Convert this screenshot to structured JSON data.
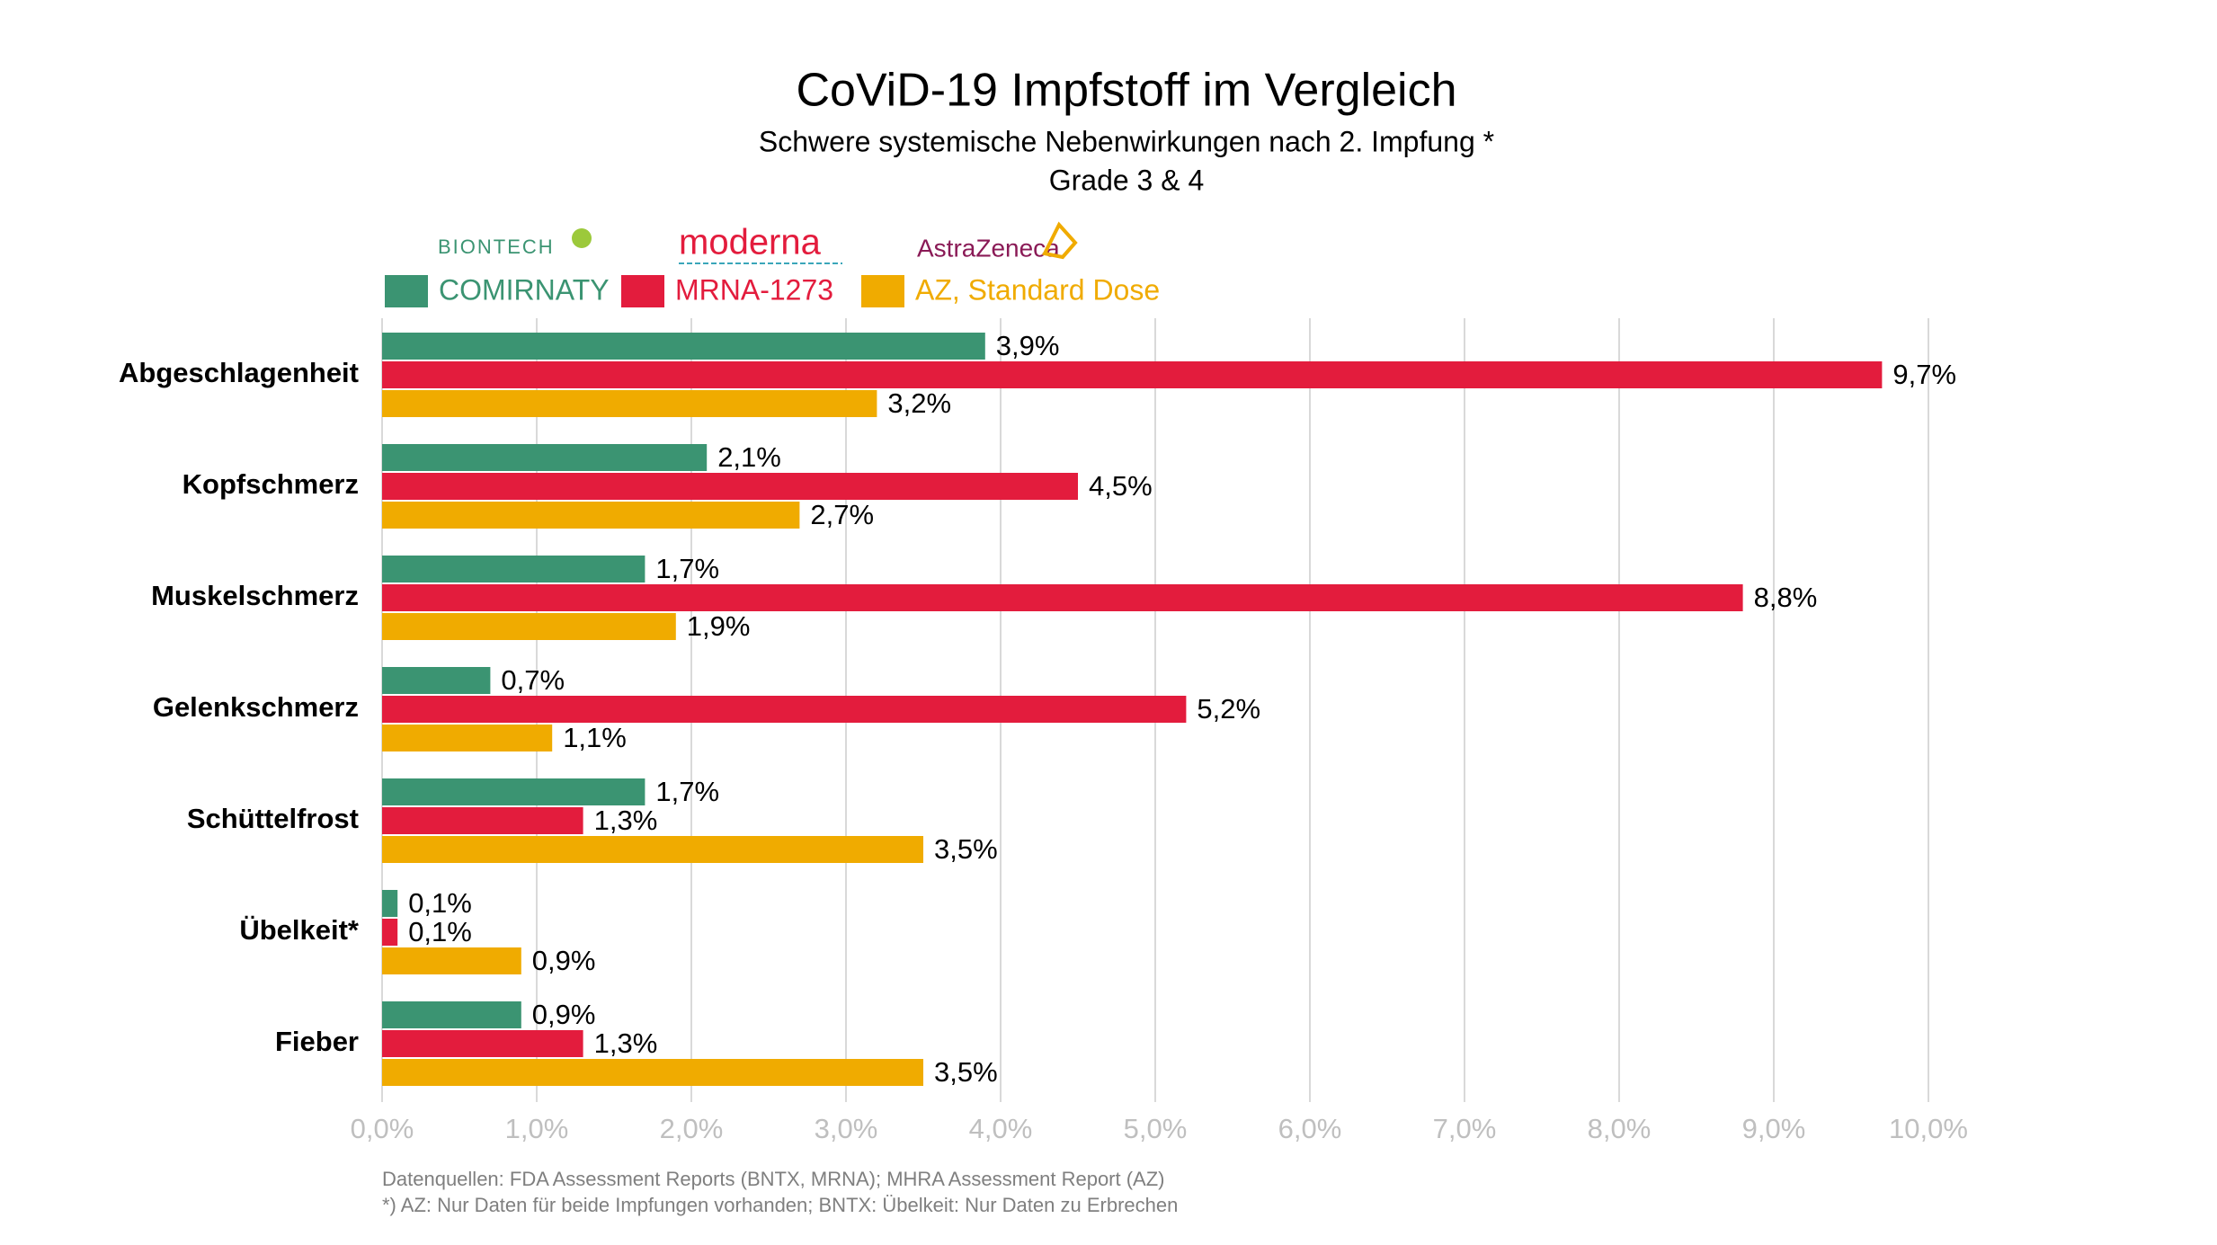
{
  "chart_data": {
    "type": "bar",
    "orientation": "horizontal",
    "title": "CoViD-19 Impfstoff im Vergleich",
    "subtitle": "Schwere systemische Nebenwirkungen nach 2. Impfung *",
    "subtitle2": "Grade 3 & 4",
    "logos": [
      "BIONTECH",
      "moderna",
      "AstraZeneca"
    ],
    "categories": [
      "Abgeschlagenheit",
      "Kopfschmerz",
      "Muskelschmerz",
      "Gelenkschmerz",
      "Schüttelfrost",
      "Übelkeit*",
      "Fieber"
    ],
    "series": [
      {
        "name": "COMIRNATY",
        "color": "#3b9472",
        "values": [
          3.9,
          2.1,
          1.7,
          0.7,
          1.7,
          0.1,
          0.9
        ],
        "value_labels": [
          "3,9%",
          "2,1%",
          "1,7%",
          "0,7%",
          "1,7%",
          "0,1%",
          "0,9%"
        ]
      },
      {
        "name": "MRNA-1273",
        "color": "#e31c3d",
        "values": [
          9.7,
          4.5,
          8.8,
          5.2,
          1.3,
          0.1,
          1.3
        ],
        "value_labels": [
          "9,7%",
          "4,5%",
          "8,8%",
          "5,2%",
          "1,3%",
          "0,1%",
          "1,3%"
        ]
      },
      {
        "name": "AZ, Standard Dose",
        "color": "#f0ab00",
        "values": [
          3.2,
          2.7,
          1.9,
          1.1,
          3.5,
          0.9,
          3.5
        ],
        "value_labels": [
          "3,2%",
          "2,7%",
          "1,9%",
          "1,1%",
          "3,5%",
          "0,9%",
          "3,5%"
        ]
      }
    ],
    "xlim": [
      0,
      10
    ],
    "xticks": [
      {
        "value": 0,
        "label": "0,0%"
      },
      {
        "value": 1,
        "label": "1,0%"
      },
      {
        "value": 2,
        "label": "2,0%"
      },
      {
        "value": 3,
        "label": "3,0%"
      },
      {
        "value": 4,
        "label": "4,0%"
      },
      {
        "value": 5,
        "label": "5,0%"
      },
      {
        "value": 6,
        "label": "6,0%"
      },
      {
        "value": 7,
        "label": "7,0%"
      },
      {
        "value": 8,
        "label": "8,0%"
      },
      {
        "value": 9,
        "label": "9,0%"
      },
      {
        "value": 10,
        "label": "10,0%"
      }
    ],
    "grid": true,
    "notes": [
      "Datenquellen: FDA Assessment Reports (BNTX, MRNA); MHRA Assessment Report (AZ)",
      "*) AZ: Nur Daten für beide Impfungen vorhanden; BNTX: Übelkeit: Nur Daten zu Erbrechen"
    ]
  }
}
